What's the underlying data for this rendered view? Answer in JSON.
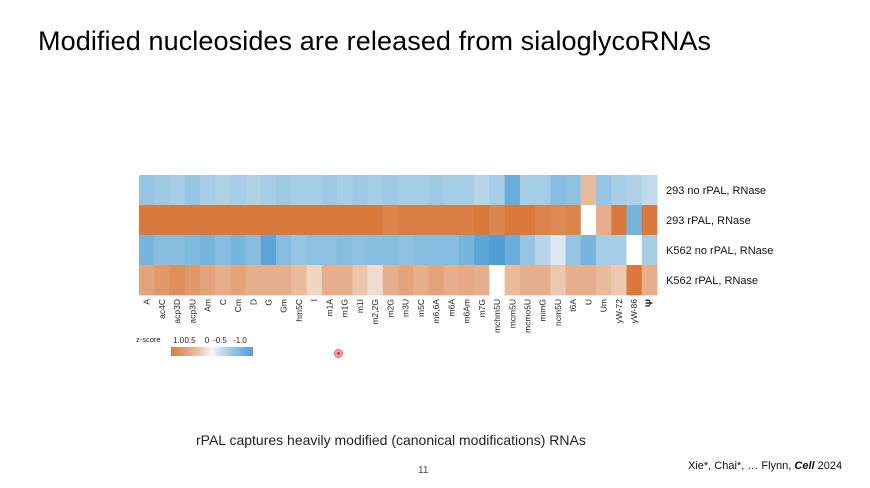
{
  "slide": {
    "title": "Modified nucleosides are released from sialoglycoRNAs",
    "caption": "rPAL captures heavily modified (canonical modifications) RNAs",
    "page_number": "11",
    "citation": {
      "authors": "Xie*, Chai*, … Flynn,",
      "journal": "Cell",
      "year": "2024"
    }
  },
  "colors": {
    "high": "#d97a3c",
    "mid": "#f7f7f7",
    "low": "#4e9fd4",
    "missing": "#ffffff"
  },
  "chart_data": {
    "type": "heatmap",
    "title": "",
    "rows": [
      "293 no rPAL, RNase",
      "293 rPAL, RNase",
      "K562 no rPAL, RNase",
      "K562 rPAL, RNase"
    ],
    "columns": [
      "A",
      "ac4C",
      "acp3D",
      "acp3U",
      "Am",
      "C",
      "Cm",
      "D",
      "G",
      "Gm",
      "hm5C",
      "I",
      "m1A",
      "m1G",
      "m1I",
      "m2,2G",
      "m2G",
      "m3U",
      "m5C",
      "m6,6A",
      "m6A",
      "m6Am",
      "m7G",
      "mchm5U",
      "mcm5U",
      "mcmo5U",
      "mimG",
      "ncm5U",
      "t6A",
      "U",
      "Um",
      "yW-72",
      "yW-86",
      "Ψ"
    ],
    "values": [
      [
        -0.5,
        -0.45,
        -0.4,
        -0.5,
        -0.4,
        -0.35,
        -0.4,
        -0.35,
        -0.4,
        -0.45,
        -0.4,
        -0.4,
        -0.45,
        -0.4,
        -0.45,
        -0.4,
        -0.45,
        -0.4,
        -0.4,
        -0.45,
        -0.4,
        -0.4,
        -0.3,
        -0.4,
        -0.8,
        -0.4,
        -0.4,
        -0.6,
        -0.55,
        0.4,
        -0.5,
        -0.4,
        -0.35,
        -0.25
      ],
      [
        1.0,
        1.0,
        1.0,
        1.0,
        1.05,
        1.0,
        1.0,
        1.0,
        1.0,
        1.0,
        1.0,
        1.0,
        1.0,
        1.05,
        1.1,
        1.0,
        0.9,
        0.95,
        0.95,
        0.95,
        0.95,
        0.95,
        1.2,
        0.9,
        1.0,
        1.0,
        0.9,
        0.85,
        0.9,
        null,
        0.5,
        1.1,
        -0.7,
        1.0
      ],
      [
        -0.7,
        -0.6,
        -0.6,
        -0.65,
        -0.7,
        -0.6,
        -0.7,
        -0.6,
        -0.9,
        -0.6,
        -0.5,
        -0.55,
        -0.55,
        -0.6,
        -0.55,
        -0.6,
        -0.6,
        -0.55,
        -0.6,
        -0.6,
        -0.6,
        -0.7,
        -0.9,
        -1.1,
        -0.8,
        -0.5,
        -0.3,
        -0.1,
        -0.5,
        -0.7,
        -0.4,
        -0.4,
        null,
        -0.4
      ],
      [
        0.6,
        0.7,
        0.8,
        0.7,
        0.6,
        0.5,
        0.6,
        0.5,
        0.5,
        0.5,
        0.4,
        0.2,
        0.5,
        0.5,
        0.3,
        0.15,
        0.5,
        0.6,
        0.5,
        0.6,
        0.5,
        0.55,
        0.5,
        null,
        0.4,
        0.5,
        0.5,
        0.3,
        0.5,
        0.5,
        0.4,
        0.3,
        1.2,
        0.5
      ]
    ],
    "colorbar": {
      "label": "z-score",
      "ticks": [
        "1.0",
        "0.5",
        "0",
        "-0.5",
        "-1.0"
      ],
      "range": [
        1.0,
        -1.0
      ]
    }
  }
}
